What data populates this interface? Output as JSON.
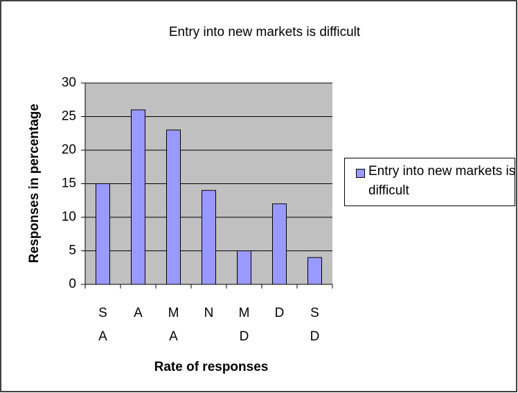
{
  "chart_data": {
    "type": "bar",
    "title": "Entry into new markets is difficult",
    "x_label": "Rate of responses",
    "y_label": "Responses in percentage",
    "categories": [
      "S A",
      "A",
      "M A",
      "N",
      "M D",
      "D",
      "S D"
    ],
    "series": [
      {
        "name": "Entry into new markets is difficult",
        "color": "#9999ff",
        "values": [
          15,
          26,
          23,
          14,
          5,
          12,
          4
        ]
      }
    ],
    "ylim": [
      0,
      30
    ],
    "yticks": [
      0,
      5,
      10,
      15,
      20,
      25,
      30
    ],
    "grid": true,
    "legend": "right"
  }
}
